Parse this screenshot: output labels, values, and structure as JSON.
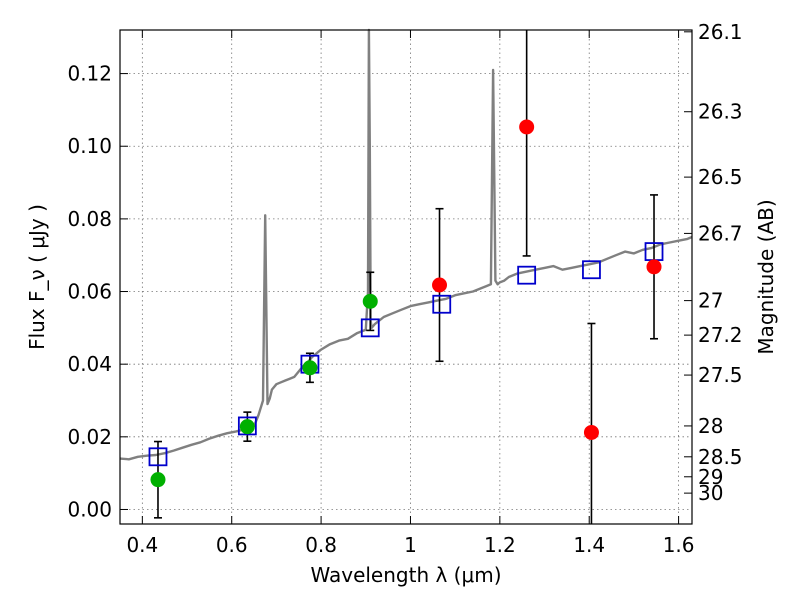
{
  "chart_data": {
    "type": "scatter",
    "xlabel": "Wavelength  λ (μm)",
    "ylabel": "Flux  F_ν  ( μJy )",
    "ylabel_right": "Magnitude (AB)",
    "xlim": [
      0.35,
      1.63
    ],
    "ylim": [
      -0.004,
      0.132
    ],
    "grid": true,
    "x_ticks": [
      {
        "value": 0.4,
        "label": "0.4"
      },
      {
        "value": 0.6,
        "label": "0.6"
      },
      {
        "value": 0.8,
        "label": "0.8"
      },
      {
        "value": 1.0,
        "label": "1"
      },
      {
        "value": 1.2,
        "label": "1.2"
      },
      {
        "value": 1.4,
        "label": "1.4"
      },
      {
        "value": 1.6,
        "label": "1.6"
      }
    ],
    "y_ticks": [
      {
        "value": 0.0,
        "label": "0.00"
      },
      {
        "value": 0.02,
        "label": "0.02"
      },
      {
        "value": 0.04,
        "label": "0.04"
      },
      {
        "value": 0.06,
        "label": "0.06"
      },
      {
        "value": 0.08,
        "label": "0.08"
      },
      {
        "value": 0.1,
        "label": "0.10"
      },
      {
        "value": 0.12,
        "label": "0.12"
      }
    ],
    "right_ticks": [
      {
        "flux": 0.1315,
        "label": "26.1"
      },
      {
        "flux": 0.1095,
        "label": "26.3"
      },
      {
        "flux": 0.0915,
        "label": "26.5"
      },
      {
        "flux": 0.076,
        "label": "26.7"
      },
      {
        "flux": 0.0575,
        "label": "27"
      },
      {
        "flux": 0.048,
        "label": "27.2"
      },
      {
        "flux": 0.037,
        "label": "27.5"
      },
      {
        "flux": 0.023,
        "label": "28"
      },
      {
        "flux": 0.0145,
        "label": "28.5"
      },
      {
        "flux": 0.009,
        "label": "29"
      },
      {
        "flux": 0.0045,
        "label": "30"
      }
    ],
    "colors": {
      "template": "#808080",
      "model_box": "#0000cc",
      "optical": "#00b000",
      "nir": "#ff0000",
      "errorbar": "#000000"
    },
    "template_spectrum": {
      "x": [
        0.35,
        0.37,
        0.39,
        0.41,
        0.43,
        0.45,
        0.47,
        0.49,
        0.51,
        0.53,
        0.55,
        0.57,
        0.59,
        0.61,
        0.62,
        0.63,
        0.64,
        0.65,
        0.66,
        0.67,
        0.675,
        0.68,
        0.685,
        0.69,
        0.7,
        0.71,
        0.72,
        0.73,
        0.74,
        0.75,
        0.76,
        0.77,
        0.78,
        0.79,
        0.8,
        0.82,
        0.84,
        0.86,
        0.88,
        0.9,
        0.905,
        0.907,
        0.909,
        0.911,
        0.913,
        0.92,
        0.94,
        0.96,
        0.98,
        1.0,
        1.02,
        1.04,
        1.06,
        1.08,
        1.1,
        1.12,
        1.14,
        1.16,
        1.17,
        1.18,
        1.185,
        1.19,
        1.195,
        1.2,
        1.21,
        1.22,
        1.24,
        1.26,
        1.28,
        1.3,
        1.32,
        1.34,
        1.36,
        1.38,
        1.4,
        1.42,
        1.44,
        1.46,
        1.48,
        1.5,
        1.52,
        1.54,
        1.56,
        1.58,
        1.6,
        1.62,
        1.63
      ],
      "y": [
        0.014,
        0.0138,
        0.0145,
        0.0148,
        0.015,
        0.0155,
        0.0162,
        0.017,
        0.0178,
        0.0185,
        0.0195,
        0.0203,
        0.021,
        0.0215,
        0.0218,
        0.0222,
        0.0225,
        0.023,
        0.026,
        0.03,
        0.081,
        0.029,
        0.0305,
        0.033,
        0.0345,
        0.035,
        0.0355,
        0.036,
        0.0365,
        0.038,
        0.0395,
        0.0405,
        0.042,
        0.043,
        0.044,
        0.0455,
        0.0465,
        0.047,
        0.0485,
        0.0495,
        0.06,
        0.135,
        0.1,
        0.052,
        0.05,
        0.051,
        0.053,
        0.054,
        0.055,
        0.056,
        0.0565,
        0.057,
        0.0575,
        0.058,
        0.059,
        0.0595,
        0.06,
        0.061,
        0.0615,
        0.062,
        0.121,
        0.063,
        0.062,
        0.0625,
        0.063,
        0.064,
        0.065,
        0.0655,
        0.066,
        0.0665,
        0.067,
        0.066,
        0.0665,
        0.067,
        0.0675,
        0.068,
        0.069,
        0.07,
        0.071,
        0.0705,
        0.0715,
        0.072,
        0.073,
        0.0735,
        0.074,
        0.0745,
        0.075
      ]
    },
    "model_photometry": {
      "x": [
        0.435,
        0.635,
        0.775,
        0.91,
        1.07,
        1.26,
        1.405,
        1.545
      ],
      "y": [
        0.0145,
        0.023,
        0.04,
        0.05,
        0.0565,
        0.0645,
        0.066,
        0.071
      ]
    },
    "observed_optical": {
      "x": [
        0.435,
        0.635,
        0.775,
        0.91
      ],
      "y": [
        0.0082,
        0.0228,
        0.039,
        0.0573
      ],
      "yerr": [
        0.0105,
        0.004,
        0.004,
        0.008
      ]
    },
    "observed_nir": {
      "x": [
        1.065,
        1.26,
        1.405,
        1.545
      ],
      "y": [
        0.0618,
        0.1053,
        0.0212,
        0.0668
      ],
      "yerr": [
        0.021,
        0.0355,
        0.03,
        0.0198
      ]
    }
  }
}
